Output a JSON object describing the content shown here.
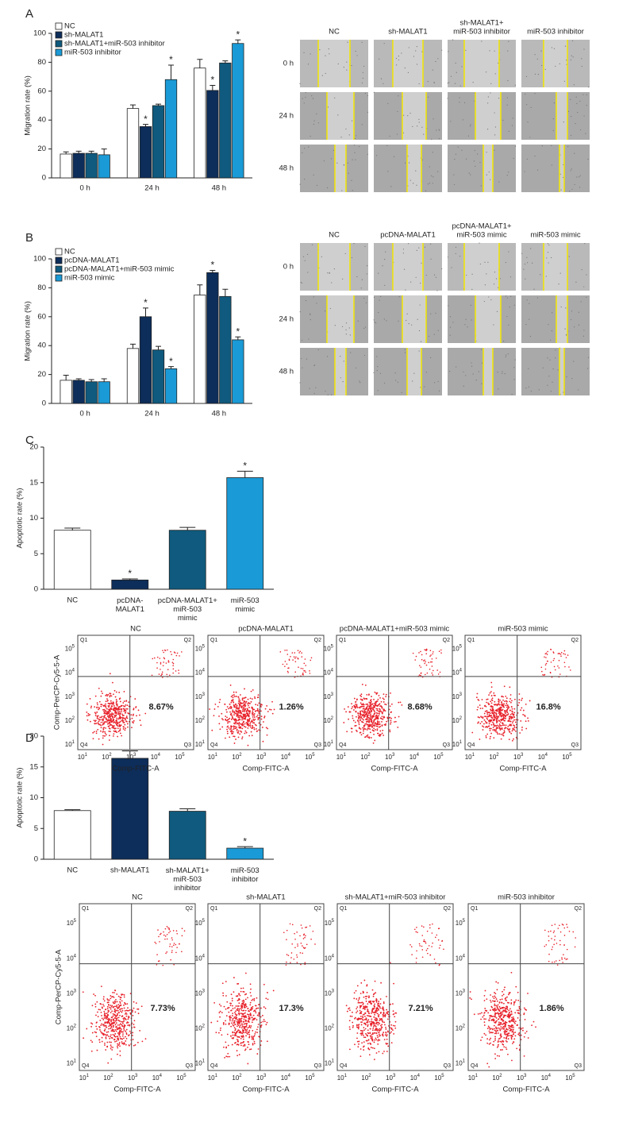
{
  "panel_labels": [
    "A",
    "B",
    "C",
    "D"
  ],
  "chart_data": [
    {
      "type": "grouped_bar",
      "y_label": "Migration rate (%)",
      "categories": [
        "0 h",
        "24 h",
        "48 h"
      ],
      "ylim": [
        0,
        100
      ],
      "yticks": [
        0,
        20,
        40,
        60,
        80,
        100
      ],
      "legend": "upper left",
      "grid": false,
      "series": [
        {
          "name": "NC",
          "color": "#ffffff",
          "values": [
            16.5,
            48,
            76
          ],
          "errors": [
            1.5,
            2.5,
            6
          ],
          "significance": [
            null,
            null,
            null
          ]
        },
        {
          "name": "sh-MALAT1",
          "color": "#0d2d5a",
          "values": [
            17,
            35.5,
            60.5
          ],
          "errors": [
            1.5,
            1.5,
            3.5
          ],
          "significance": [
            null,
            "*",
            "*"
          ]
        },
        {
          "name": "sh-MALAT1+miR-503 inhibitor",
          "color": "#0f5a7e",
          "values": [
            17,
            50,
            79.5
          ],
          "errors": [
            1.5,
            1,
            1.5
          ],
          "significance": [
            null,
            null,
            null
          ]
        },
        {
          "name": "miR-503 inhibitor",
          "color": "#1a9ad6",
          "values": [
            16,
            68,
            93
          ],
          "errors": [
            4,
            10,
            2.5
          ],
          "significance": [
            null,
            "*",
            "*"
          ]
        }
      ]
    },
    {
      "type": "grouped_bar",
      "y_label": "Migration rate (%)",
      "categories": [
        "0 h",
        "24 h",
        "48 h"
      ],
      "ylim": [
        0,
        100
      ],
      "yticks": [
        0,
        20,
        40,
        60,
        80,
        100
      ],
      "legend": "upper left",
      "grid": false,
      "series": [
        {
          "name": "NC",
          "color": "#ffffff",
          "values": [
            16,
            38,
            75
          ],
          "errors": [
            3.5,
            3,
            7
          ],
          "significance": [
            null,
            null,
            null
          ]
        },
        {
          "name": "pcDNA-MALAT1",
          "color": "#0d2d5a",
          "values": [
            16,
            60,
            90.5
          ],
          "errors": [
            1,
            6,
            1.5
          ],
          "significance": [
            null,
            "*",
            "*"
          ]
        },
        {
          "name": "pcDNA-MALAT1+miR-503 mimic",
          "color": "#0f5a7e",
          "values": [
            15,
            37,
            74
          ],
          "errors": [
            1.5,
            2.5,
            5
          ],
          "significance": [
            null,
            null,
            null
          ]
        },
        {
          "name": "miR-503 mimic",
          "color": "#1a9ad6",
          "values": [
            15,
            24,
            44
          ],
          "errors": [
            2,
            1.5,
            2
          ],
          "significance": [
            null,
            "*",
            "*"
          ]
        }
      ]
    },
    {
      "type": "bar",
      "y_label": "Apoptotic rate (%)",
      "categories": [
        "NC",
        "pcDNA-\nMALAT1",
        "pcDNA-MALAT1+\nmiR-503\nmimic",
        "miR-503\nmimic"
      ],
      "values": [
        8.3,
        1.3,
        8.3,
        15.7
      ],
      "errors": [
        0.3,
        0.15,
        0.4,
        0.9
      ],
      "significance": [
        null,
        "*",
        null,
        "*"
      ],
      "colors": [
        "#ffffff",
        "#0d2d5a",
        "#0f5a7e",
        "#1a9ad6"
      ],
      "ylim": [
        0,
        20
      ],
      "yticks": [
        0,
        5,
        10,
        15,
        20
      ],
      "grid": false
    },
    {
      "type": "bar",
      "y_label": "Apoptotic rate (%)",
      "categories": [
        "NC",
        "sh-MALAT1",
        "sh-MALAT1+\nmiR-503\ninhibitor",
        "miR-503\ninhibitor"
      ],
      "values": [
        7.9,
        16.4,
        7.8,
        1.8
      ],
      "errors": [
        0.15,
        1.2,
        0.4,
        0.25
      ],
      "significance": [
        null,
        "*",
        null,
        "*"
      ],
      "colors": [
        "#ffffff",
        "#0d2d5a",
        "#0f5a7e",
        "#1a9ad6"
      ],
      "ylim": [
        0,
        20
      ],
      "yticks": [
        0,
        5,
        10,
        15,
        20
      ],
      "grid": false
    }
  ],
  "wound_assays": [
    {
      "columns": [
        [
          "NC"
        ],
        [
          "sh-MALAT1"
        ],
        [
          "sh-MALAT1+",
          "miR-503 inhibitor"
        ],
        [
          "miR-503 inhibitor"
        ]
      ],
      "rows": [
        "0 h",
        "24 h",
        "48 h"
      ]
    },
    {
      "columns": [
        [
          "NC"
        ],
        [
          "pcDNA-MALAT1"
        ],
        [
          "pcDNA-MALAT1+",
          "miR-503 mimic"
        ],
        [
          "miR-503 mimic"
        ]
      ],
      "rows": [
        "0 h",
        "24 h",
        "48 h"
      ]
    }
  ],
  "flow_axes": {
    "x_label": "Comp-FITC-A",
    "y_label": "Comp-PerCP-Cy5-5-A",
    "quadrants": [
      "Q1",
      "Q2",
      "Q3",
      "Q4"
    ],
    "tick_base": "10",
    "tick_exponents": [
      "1",
      "2",
      "3",
      "4",
      "5"
    ]
  },
  "flow_cytometry": [
    {
      "titles": [
        "NC",
        "pcDNA-MALAT1",
        "pcDNA-MALAT1+miR-503 mimic",
        "miR-503 mimic"
      ],
      "percents": [
        "8.67%",
        "1.26%",
        "8.68%",
        "16.8%"
      ]
    },
    {
      "titles": [
        "NC",
        "sh-MALAT1",
        "sh-MALAT1+miR-503 inhibitor",
        "miR-503 inhibitor"
      ],
      "percents": [
        "7.73%",
        "17.3%",
        "7.21%",
        "1.86%"
      ]
    }
  ]
}
